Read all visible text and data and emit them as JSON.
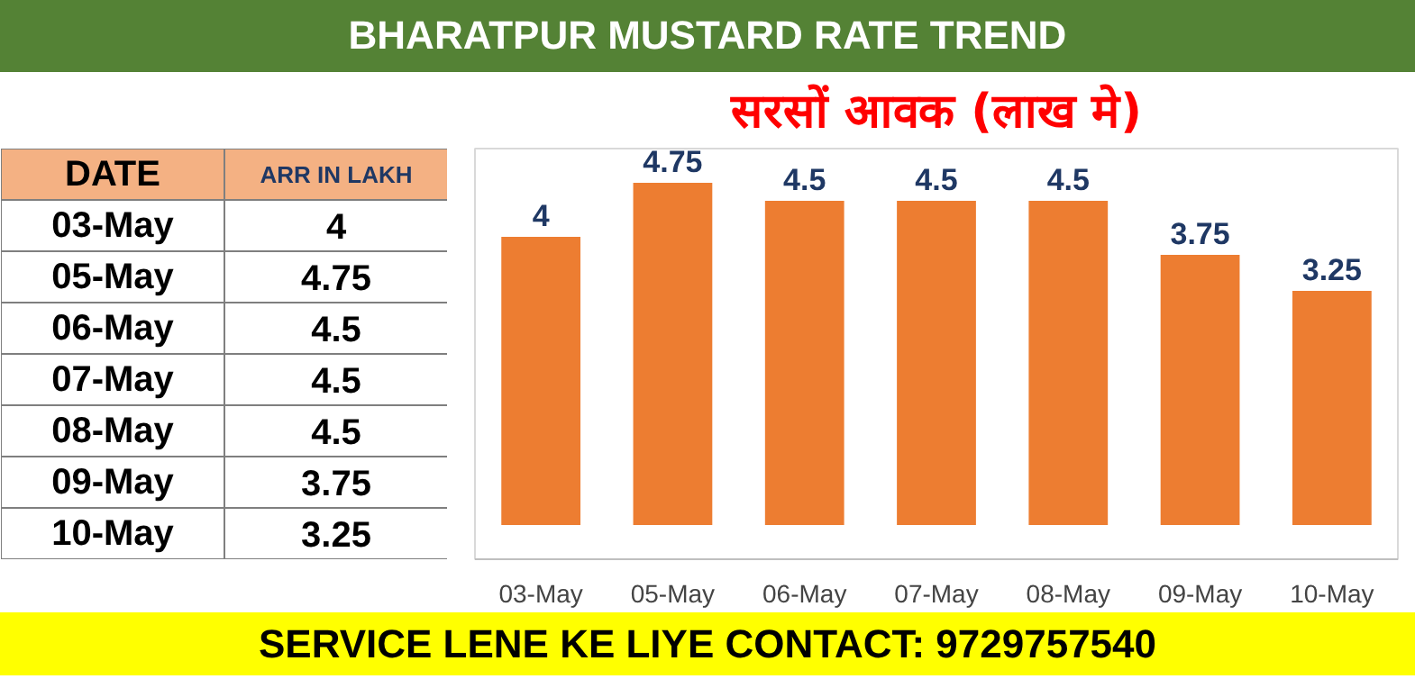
{
  "chart_data": [
    {
      "type": "other",
      "annotations": [
        "DATE",
        "ARR IN LAKH",
        "03-May",
        "4",
        "05-May",
        "4.75",
        "06-May",
        "4.5",
        "07-May",
        "4.5",
        "08-May",
        "4.5",
        "09-May",
        "3.75",
        "10-May",
        "3.25"
      ]
    },
    {
      "type": "bar",
      "title": "BHARATPUR MUSTARD RATE TREND",
      "subtitle": "सरसों आवक (लाख मे)",
      "categories": [
        "03-May",
        "05-May",
        "06-May",
        "07-May",
        "08-May",
        "09-May",
        "10-May"
      ],
      "values": [
        4,
        4.75,
        4.5,
        4.5,
        4.5,
        3.75,
        3.25
      ],
      "color": "#ed7d31",
      "data_labels": true,
      "grid": false,
      "annotations": [
        "SERVICE LENE KE LIYE CONTACT: 9729757540"
      ]
    }
  ]
}
